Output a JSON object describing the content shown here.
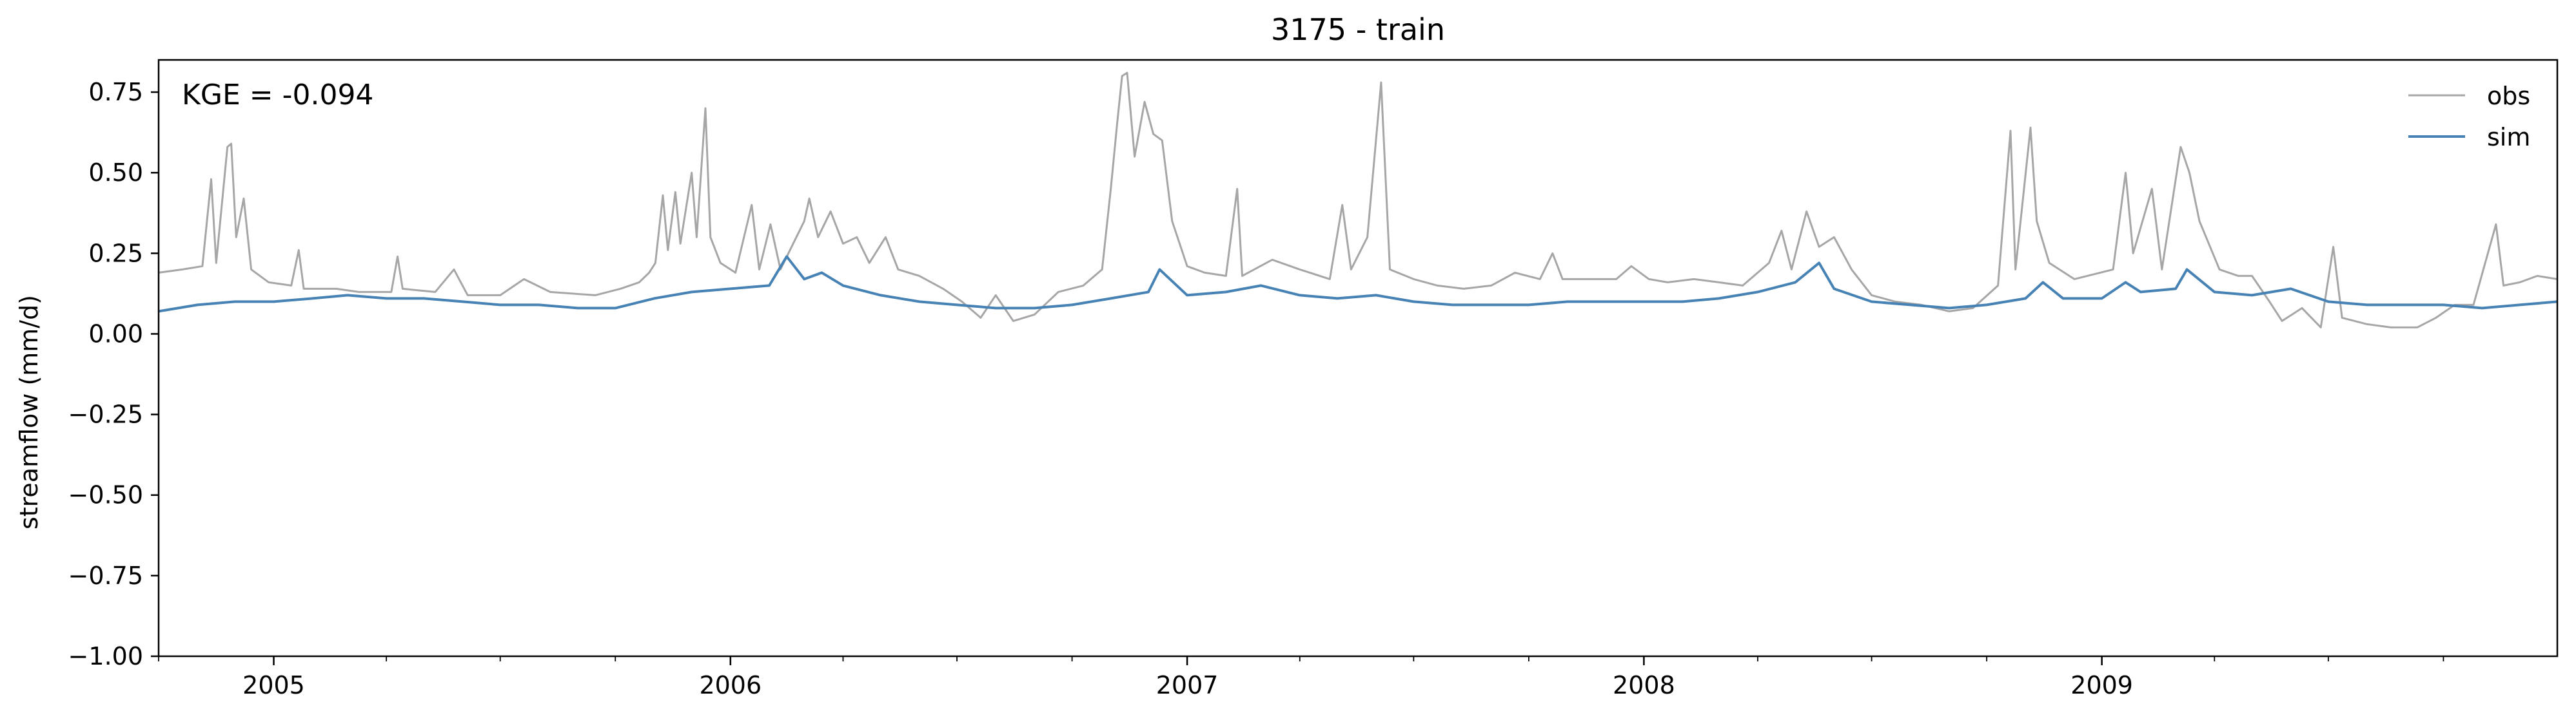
{
  "chart_data": {
    "type": "line",
    "title": "3175 - train",
    "xlabel": "",
    "ylabel": "streamflow (mm/d)",
    "annotation": "KGE = -0.094",
    "xlim": [
      "2004-10-01",
      "2009-12-31"
    ],
    "ylim": [
      -1.0,
      0.85
    ],
    "grid": false,
    "legend_position": "top-right",
    "x_ticks": [
      {
        "date": "2005-01-01",
        "label": "2005"
      },
      {
        "date": "2006-01-01",
        "label": "2006"
      },
      {
        "date": "2007-01-01",
        "label": "2007"
      },
      {
        "date": "2008-01-01",
        "label": "2008"
      },
      {
        "date": "2009-01-01",
        "label": "2009"
      }
    ],
    "y_ticks": [
      {
        "value": 0.75,
        "label": "0.75"
      },
      {
        "value": 0.5,
        "label": "0.50"
      },
      {
        "value": 0.25,
        "label": "0.25"
      },
      {
        "value": 0.0,
        "label": "0.00"
      },
      {
        "value": -0.25,
        "label": "−0.25"
      },
      {
        "value": -0.5,
        "label": "−0.50"
      },
      {
        "value": -0.75,
        "label": "−0.75"
      },
      {
        "value": -1.0,
        "label": "−1.00"
      }
    ],
    "series": [
      {
        "name": "obs",
        "color": "#a6a6a6",
        "points": [
          [
            "2004-10-01",
            0.19
          ],
          [
            "2004-10-20",
            0.2
          ],
          [
            "2004-11-05",
            0.21
          ],
          [
            "2004-11-12",
            0.48
          ],
          [
            "2004-11-16",
            0.22
          ],
          [
            "2004-11-25",
            0.58
          ],
          [
            "2004-11-28",
            0.59
          ],
          [
            "2004-12-02",
            0.3
          ],
          [
            "2004-12-08",
            0.42
          ],
          [
            "2004-12-14",
            0.2
          ],
          [
            "2004-12-28",
            0.16
          ],
          [
            "2005-01-15",
            0.15
          ],
          [
            "2005-01-21",
            0.26
          ],
          [
            "2005-01-25",
            0.14
          ],
          [
            "2005-02-20",
            0.14
          ],
          [
            "2005-03-10",
            0.13
          ],
          [
            "2005-04-05",
            0.13
          ],
          [
            "2005-04-10",
            0.24
          ],
          [
            "2005-04-14",
            0.14
          ],
          [
            "2005-05-10",
            0.13
          ],
          [
            "2005-05-25",
            0.2
          ],
          [
            "2005-06-05",
            0.12
          ],
          [
            "2005-07-01",
            0.12
          ],
          [
            "2005-07-20",
            0.17
          ],
          [
            "2005-08-10",
            0.13
          ],
          [
            "2005-09-15",
            0.12
          ],
          [
            "2005-10-05",
            0.14
          ],
          [
            "2005-10-20",
            0.16
          ],
          [
            "2005-10-28",
            0.19
          ],
          [
            "2005-11-02",
            0.22
          ],
          [
            "2005-11-08",
            0.43
          ],
          [
            "2005-11-12",
            0.26
          ],
          [
            "2005-11-18",
            0.44
          ],
          [
            "2005-11-22",
            0.28
          ],
          [
            "2005-12-01",
            0.5
          ],
          [
            "2005-12-05",
            0.3
          ],
          [
            "2005-12-12",
            0.7
          ],
          [
            "2005-12-16",
            0.3
          ],
          [
            "2005-12-24",
            0.22
          ],
          [
            "2006-01-05",
            0.19
          ],
          [
            "2006-01-18",
            0.4
          ],
          [
            "2006-01-24",
            0.2
          ],
          [
            "2006-02-02",
            0.34
          ],
          [
            "2006-02-10",
            0.2
          ],
          [
            "2006-03-01",
            0.35
          ],
          [
            "2006-03-05",
            0.42
          ],
          [
            "2006-03-12",
            0.3
          ],
          [
            "2006-03-22",
            0.38
          ],
          [
            "2006-04-01",
            0.28
          ],
          [
            "2006-04-12",
            0.3
          ],
          [
            "2006-04-22",
            0.22
          ],
          [
            "2006-05-05",
            0.3
          ],
          [
            "2006-05-15",
            0.2
          ],
          [
            "2006-06-01",
            0.18
          ],
          [
            "2006-06-20",
            0.14
          ],
          [
            "2006-07-05",
            0.1
          ],
          [
            "2006-07-20",
            0.05
          ],
          [
            "2006-08-01",
            0.12
          ],
          [
            "2006-08-15",
            0.04
          ],
          [
            "2006-09-01",
            0.06
          ],
          [
            "2006-09-20",
            0.13
          ],
          [
            "2006-10-10",
            0.15
          ],
          [
            "2006-10-25",
            0.2
          ],
          [
            "2006-11-01",
            0.45
          ],
          [
            "2006-11-06",
            0.65
          ],
          [
            "2006-11-10",
            0.8
          ],
          [
            "2006-11-14",
            0.81
          ],
          [
            "2006-11-20",
            0.55
          ],
          [
            "2006-11-28",
            0.72
          ],
          [
            "2006-12-05",
            0.62
          ],
          [
            "2006-12-12",
            0.6
          ],
          [
            "2006-12-20",
            0.35
          ],
          [
            "2007-01-01",
            0.21
          ],
          [
            "2007-01-15",
            0.19
          ],
          [
            "2007-02-01",
            0.18
          ],
          [
            "2007-02-10",
            0.45
          ],
          [
            "2007-02-14",
            0.18
          ],
          [
            "2007-03-10",
            0.23
          ],
          [
            "2007-04-01",
            0.2
          ],
          [
            "2007-04-25",
            0.17
          ],
          [
            "2007-05-05",
            0.4
          ],
          [
            "2007-05-12",
            0.2
          ],
          [
            "2007-05-25",
            0.3
          ],
          [
            "2007-06-05",
            0.78
          ],
          [
            "2007-06-12",
            0.2
          ],
          [
            "2007-07-01",
            0.17
          ],
          [
            "2007-07-20",
            0.15
          ],
          [
            "2007-08-10",
            0.14
          ],
          [
            "2007-09-01",
            0.15
          ],
          [
            "2007-09-20",
            0.19
          ],
          [
            "2007-10-10",
            0.17
          ],
          [
            "2007-10-20",
            0.25
          ],
          [
            "2007-10-28",
            0.17
          ],
          [
            "2007-11-20",
            0.17
          ],
          [
            "2007-12-10",
            0.17
          ],
          [
            "2007-12-22",
            0.21
          ],
          [
            "2008-01-05",
            0.17
          ],
          [
            "2008-01-20",
            0.16
          ],
          [
            "2008-02-10",
            0.17
          ],
          [
            "2008-03-01",
            0.16
          ],
          [
            "2008-03-20",
            0.15
          ],
          [
            "2008-04-10",
            0.22
          ],
          [
            "2008-04-20",
            0.32
          ],
          [
            "2008-04-28",
            0.2
          ],
          [
            "2008-05-10",
            0.38
          ],
          [
            "2008-05-20",
            0.27
          ],
          [
            "2008-06-01",
            0.3
          ],
          [
            "2008-06-15",
            0.2
          ],
          [
            "2008-07-01",
            0.12
          ],
          [
            "2008-07-20",
            0.1
          ],
          [
            "2008-08-10",
            0.09
          ],
          [
            "2008-09-01",
            0.07
          ],
          [
            "2008-09-20",
            0.08
          ],
          [
            "2008-10-10",
            0.15
          ],
          [
            "2008-10-20",
            0.63
          ],
          [
            "2008-10-24",
            0.2
          ],
          [
            "2008-11-05",
            0.64
          ],
          [
            "2008-11-10",
            0.35
          ],
          [
            "2008-11-20",
            0.22
          ],
          [
            "2008-12-10",
            0.17
          ],
          [
            "2009-01-10",
            0.2
          ],
          [
            "2009-01-20",
            0.5
          ],
          [
            "2009-01-26",
            0.25
          ],
          [
            "2009-02-10",
            0.45
          ],
          [
            "2009-02-18",
            0.2
          ],
          [
            "2009-03-05",
            0.58
          ],
          [
            "2009-03-12",
            0.5
          ],
          [
            "2009-03-20",
            0.35
          ],
          [
            "2009-04-05",
            0.2
          ],
          [
            "2009-04-20",
            0.18
          ],
          [
            "2009-05-01",
            0.18
          ],
          [
            "2009-05-15",
            0.1
          ],
          [
            "2009-05-25",
            0.04
          ],
          [
            "2009-06-10",
            0.08
          ],
          [
            "2009-06-25",
            0.02
          ],
          [
            "2009-07-05",
            0.27
          ],
          [
            "2009-07-12",
            0.05
          ],
          [
            "2009-08-01",
            0.03
          ],
          [
            "2009-08-20",
            0.02
          ],
          [
            "2009-09-10",
            0.02
          ],
          [
            "2009-09-25",
            0.05
          ],
          [
            "2009-10-10",
            0.09
          ],
          [
            "2009-10-25",
            0.09
          ],
          [
            "2009-11-12",
            0.34
          ],
          [
            "2009-11-18",
            0.15
          ],
          [
            "2009-12-01",
            0.16
          ],
          [
            "2009-12-15",
            0.18
          ],
          [
            "2009-12-31",
            0.17
          ]
        ]
      },
      {
        "name": "sim",
        "color": "#4682b4",
        "points": [
          [
            "2004-10-01",
            0.07
          ],
          [
            "2004-11-01",
            0.09
          ],
          [
            "2004-12-01",
            0.1
          ],
          [
            "2005-01-01",
            0.1
          ],
          [
            "2005-02-01",
            0.11
          ],
          [
            "2005-03-01",
            0.12
          ],
          [
            "2005-04-01",
            0.11
          ],
          [
            "2005-05-01",
            0.11
          ],
          [
            "2005-06-01",
            0.1
          ],
          [
            "2005-07-01",
            0.09
          ],
          [
            "2005-08-01",
            0.09
          ],
          [
            "2005-09-01",
            0.08
          ],
          [
            "2005-10-01",
            0.08
          ],
          [
            "2005-11-01",
            0.11
          ],
          [
            "2005-12-01",
            0.13
          ],
          [
            "2006-01-01",
            0.14
          ],
          [
            "2006-02-01",
            0.15
          ],
          [
            "2006-02-15",
            0.24
          ],
          [
            "2006-03-01",
            0.17
          ],
          [
            "2006-03-15",
            0.19
          ],
          [
            "2006-04-01",
            0.15
          ],
          [
            "2006-05-01",
            0.12
          ],
          [
            "2006-06-01",
            0.1
          ],
          [
            "2006-07-01",
            0.09
          ],
          [
            "2006-08-01",
            0.08
          ],
          [
            "2006-09-01",
            0.08
          ],
          [
            "2006-10-01",
            0.09
          ],
          [
            "2006-11-01",
            0.11
          ],
          [
            "2006-12-01",
            0.13
          ],
          [
            "2006-12-10",
            0.2
          ],
          [
            "2007-01-01",
            0.12
          ],
          [
            "2007-02-01",
            0.13
          ],
          [
            "2007-03-01",
            0.15
          ],
          [
            "2007-04-01",
            0.12
          ],
          [
            "2007-05-01",
            0.11
          ],
          [
            "2007-06-01",
            0.12
          ],
          [
            "2007-07-01",
            0.1
          ],
          [
            "2007-08-01",
            0.09
          ],
          [
            "2007-09-01",
            0.09
          ],
          [
            "2007-10-01",
            0.09
          ],
          [
            "2007-11-01",
            0.1
          ],
          [
            "2007-12-01",
            0.1
          ],
          [
            "2008-01-01",
            0.1
          ],
          [
            "2008-02-01",
            0.1
          ],
          [
            "2008-03-01",
            0.11
          ],
          [
            "2008-04-01",
            0.13
          ],
          [
            "2008-05-01",
            0.16
          ],
          [
            "2008-05-20",
            0.22
          ],
          [
            "2008-06-01",
            0.14
          ],
          [
            "2008-07-01",
            0.1
          ],
          [
            "2008-08-01",
            0.09
          ],
          [
            "2008-09-01",
            0.08
          ],
          [
            "2008-10-01",
            0.09
          ],
          [
            "2008-11-01",
            0.11
          ],
          [
            "2008-11-15",
            0.16
          ],
          [
            "2008-12-01",
            0.11
          ],
          [
            "2009-01-01",
            0.11
          ],
          [
            "2009-01-20",
            0.16
          ],
          [
            "2009-02-01",
            0.13
          ],
          [
            "2009-03-01",
            0.14
          ],
          [
            "2009-03-10",
            0.2
          ],
          [
            "2009-04-01",
            0.13
          ],
          [
            "2009-05-01",
            0.12
          ],
          [
            "2009-06-01",
            0.14
          ],
          [
            "2009-07-01",
            0.1
          ],
          [
            "2009-08-01",
            0.09
          ],
          [
            "2009-09-01",
            0.09
          ],
          [
            "2009-10-01",
            0.09
          ],
          [
            "2009-11-01",
            0.08
          ],
          [
            "2009-12-01",
            0.09
          ],
          [
            "2009-12-31",
            0.1
          ]
        ]
      }
    ]
  }
}
